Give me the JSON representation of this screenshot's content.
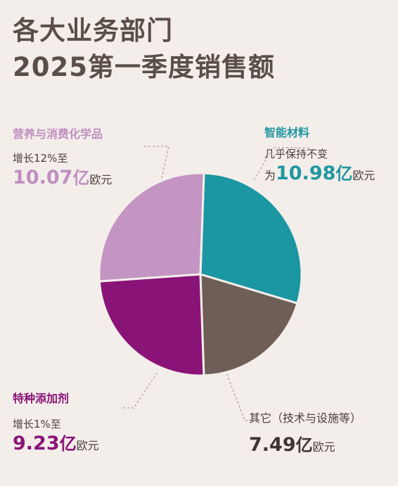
{
  "header": {
    "title_line1": "各大业务部门",
    "title_line2": "2025第一季度销售额"
  },
  "labels": {
    "nutrition": {
      "category": "营养与消费化学品",
      "desc": "增长12%至",
      "value": "10.07",
      "unit": "亿",
      "currency": "欧元"
    },
    "materials": {
      "category": "智能材料",
      "desc": "几乎保持不变",
      "prefix": "为",
      "value": "10.98",
      "unit": "亿",
      "currency": "欧元"
    },
    "additives": {
      "category": "特种添加剂",
      "desc": "增长1%至",
      "value": "9.23",
      "unit": "亿",
      "currency": "欧元"
    },
    "other": {
      "category": "其它（技术与设施等）",
      "value": "7.49",
      "unit": "亿",
      "currency": "欧元"
    }
  },
  "chart_data": {
    "type": "pie",
    "title": "各大业务部门 2025第一季度销售额",
    "slices": [
      {
        "label": "智能材料",
        "value": 10.98,
        "color": "#1a97a2"
      },
      {
        "label": "其它（技术与设施等）",
        "value": 7.49,
        "color": "#6e5e55"
      },
      {
        "label": "特种添加剂",
        "value": 9.23,
        "color": "#8a1378"
      },
      {
        "label": "营养与消费化学品",
        "value": 10.07,
        "color": "#c494c3"
      }
    ],
    "unit": "亿欧元",
    "start_angle_deg": 2
  },
  "colors": {
    "nutrition": "#c08fc0",
    "materials": "#1f97a0",
    "additives": "#8a1378",
    "other": "#6e5e55",
    "leader": "#b7aba4"
  }
}
